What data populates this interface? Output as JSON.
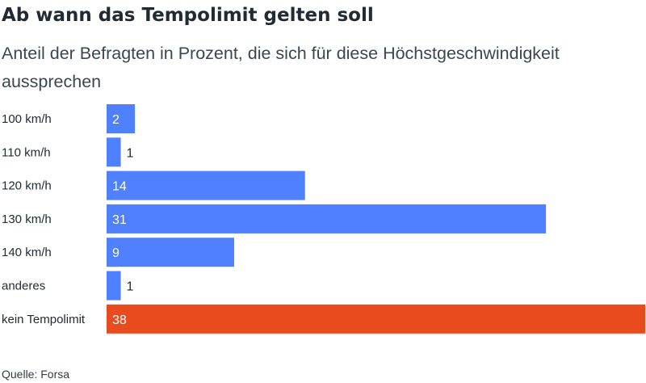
{
  "title": "Ab wann das Tempolimit gelten soll",
  "subtitle": "Anteil der Befragten in Prozent, die sich für diese Höchstgeschwindigkeit aussprechen",
  "source": "Quelle: Forsa",
  "colors": {
    "bar_default": "#4f80ff",
    "bar_highlight": "#e84c1e",
    "label_inside": "#ffffff",
    "label_outside": "#222b33",
    "category_text": "#222b33"
  },
  "chart_data": {
    "type": "bar",
    "orientation": "horizontal",
    "title": "Ab wann das Tempolimit gelten soll",
    "subtitle": "Anteil der Befragten in Prozent, die sich für diese Höchstgeschwindigkeit aussprechen",
    "categories": [
      "100 km/h",
      "110 km/h",
      "120 km/h",
      "130 km/h",
      "140 km/h",
      "anderes",
      "kein Tempolimit"
    ],
    "values": [
      2,
      1,
      14,
      31,
      9,
      1,
      38
    ],
    "highlight": [
      "kein Tempolimit"
    ],
    "xlim": [
      0,
      38
    ],
    "grid": false,
    "data_labels": true
  }
}
